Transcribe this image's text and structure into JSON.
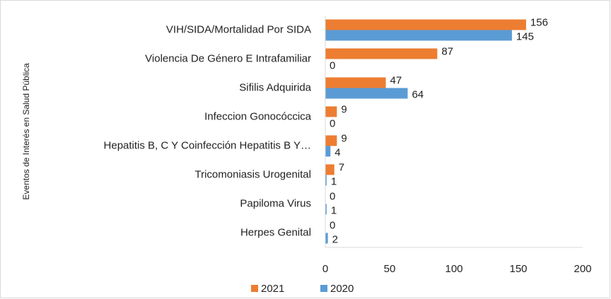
{
  "chart_data": {
    "type": "barh",
    "y_label": "Eventos de Interés en Salud Pública",
    "categories": [
      "VIH/SIDA/Mortalidad Por SIDA",
      "Violencia De Género E Intrafamiliar",
      "Sifilis Adquirida",
      "Infeccion Gonocóccica",
      "Hepatitis B, C Y Coinfección Hepatitis B Y…",
      "Tricomoniasis Urogenital",
      "Papiloma Virus",
      "Herpes Genital"
    ],
    "series": [
      {
        "name": "2021",
        "color": "#ed7d31",
        "values": [
          156,
          87,
          47,
          9,
          9,
          7,
          0,
          0
        ]
      },
      {
        "name": "2020",
        "color": "#5b9bd5",
        "values": [
          145,
          0,
          64,
          0,
          4,
          1,
          1,
          2
        ]
      }
    ],
    "xlim": [
      0,
      200
    ],
    "xticks": [
      0,
      50,
      100,
      150,
      200
    ],
    "legend": "bottom",
    "grid": false
  }
}
